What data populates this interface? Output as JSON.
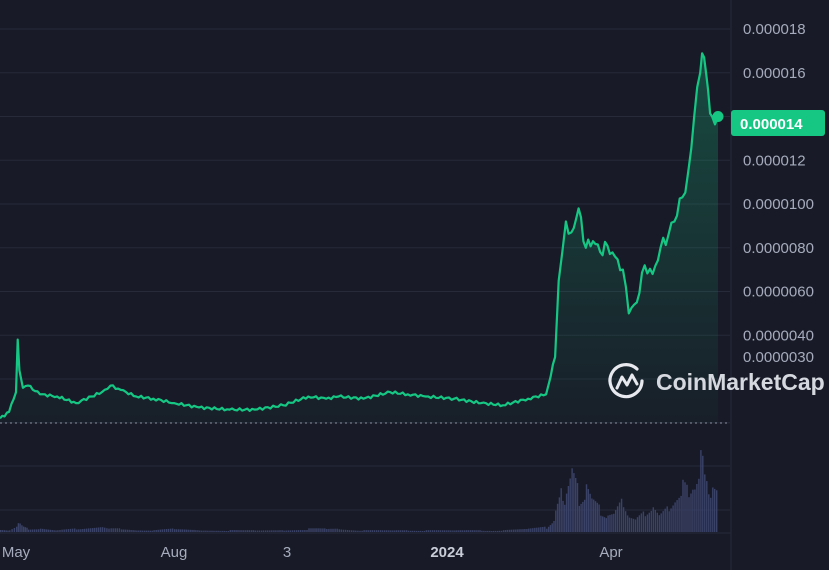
{
  "chart_data": {
    "type": "area",
    "x": [
      "2023-04-24",
      "2023-04-28",
      "2023-05-01",
      "2023-05-02",
      "2023-05-03",
      "2023-05-05",
      "2023-05-08",
      "2023-05-15",
      "2023-05-25",
      "2023-06-05",
      "2023-06-20",
      "2023-06-25",
      "2023-07-01",
      "2023-07-10",
      "2023-07-20",
      "2023-08-01",
      "2023-08-15",
      "2023-09-01",
      "2023-09-15",
      "2023-10-01",
      "2023-10-15",
      "2023-10-25",
      "2023-11-01",
      "2023-11-15",
      "2023-11-30",
      "2023-12-10",
      "2023-12-20",
      "2024-01-05",
      "2024-01-20",
      "2024-02-01",
      "2024-02-15",
      "2024-02-25",
      "2024-03-01",
      "2024-03-03",
      "2024-03-05",
      "2024-03-07",
      "2024-03-10",
      "2024-03-14",
      "2024-03-18",
      "2024-03-22",
      "2024-03-26",
      "2024-03-30",
      "2024-04-03",
      "2024-04-07",
      "2024-04-10",
      "2024-04-14",
      "2024-04-18",
      "2024-04-22",
      "2024-04-26",
      "2024-04-30",
      "2024-05-03",
      "2024-05-07",
      "2024-05-10",
      "2024-05-13",
      "2024-05-16",
      "2024-05-18",
      "2024-05-20",
      "2024-05-22",
      "2024-05-25"
    ],
    "series": [
      {
        "values": [
          2e-07,
          5e-07,
          1.4e-06,
          3.8e-06,
          2.4e-06,
          1.6e-06,
          1.7e-06,
          1.3e-06,
          1.2e-06,
          9e-07,
          1.4e-06,
          1.7e-06,
          1.5e-06,
          1.2e-06,
          1.1e-06,
          9e-07,
          7e-07,
          6e-07,
          6e-07,
          8e-07,
          1.2e-06,
          1.1e-06,
          1.2e-06,
          1.1e-06,
          1.4e-06,
          1.3e-06,
          1.2e-06,
          1.1e-06,
          9e-07,
          8e-07,
          1.1e-06,
          1.3e-06,
          3e-06,
          6.5e-06,
          7.8e-06,
          9.2e-06,
          8.7e-06,
          9.8e-06,
          8e-06,
          8.3e-06,
          7.8e-06,
          8.1e-06,
          7.6e-06,
          7e-06,
          5e-06,
          5.5e-06,
          7.2e-06,
          6.8e-06,
          8e-06,
          8.6e-06,
          9.2e-06,
          1.03e-05,
          1.15e-05,
          1.4e-05,
          1.6e-05,
          1.67e-05,
          1.52e-05,
          1.4e-05,
          1.4e-05
        ]
      }
    ],
    "yticks": [
      "0.0000030",
      "0.0000040",
      "0.0000060",
      "0.0000080",
      "0.0000100",
      "0.000012",
      "0.000014",
      "0.000016",
      "0.000018"
    ],
    "yaxis_ticks_values": [
      3e-06,
      4e-06,
      6e-06,
      8e-06,
      1e-05,
      1.2e-05,
      1.4e-05,
      1.6e-05,
      1.8e-05
    ],
    "xticks": [
      {
        "label": "May",
        "date": "2023-05-01",
        "bold": false
      },
      {
        "label": "Aug",
        "date": "2023-08-01",
        "bold": false
      },
      {
        "label": "3",
        "date": "2023-10-03",
        "bold": false
      },
      {
        "label": "2024",
        "date": "2024-01-01",
        "bold": true
      },
      {
        "label": "Apr",
        "date": "2024-04-01",
        "bold": false
      }
    ],
    "current_price_label": "0.000014",
    "volume": [
      2,
      1,
      3,
      8,
      5,
      3,
      2,
      2,
      1,
      2,
      3,
      2,
      2,
      1,
      1,
      2,
      1,
      1,
      1,
      1,
      2,
      2,
      2,
      1,
      1,
      1,
      1,
      1,
      1,
      1,
      2,
      3,
      12,
      20,
      30,
      22,
      36,
      24,
      28,
      18,
      14,
      10,
      12,
      20,
      9,
      8,
      12,
      16,
      10,
      15,
      20,
      28,
      24,
      30,
      44,
      38,
      28,
      24,
      22
    ],
    "grid": true,
    "colors": {
      "line": "#16c784",
      "area_top": "#16c784",
      "background": "#181b27",
      "grid": "#262a39",
      "volume": "#3a4268",
      "tick_text": "#a6acbd"
    },
    "watermark": "CoinMarketCap"
  }
}
